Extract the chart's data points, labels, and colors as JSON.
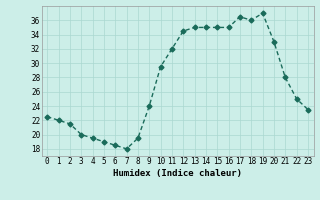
{
  "x": [
    0,
    1,
    2,
    3,
    4,
    5,
    6,
    7,
    8,
    9,
    10,
    11,
    12,
    13,
    14,
    15,
    16,
    17,
    18,
    19,
    20,
    21,
    22,
    23
  ],
  "y": [
    22.5,
    22.0,
    21.5,
    20.0,
    19.5,
    19.0,
    18.5,
    18.0,
    19.5,
    24.0,
    29.5,
    32.0,
    34.5,
    35.0,
    35.0,
    35.0,
    35.0,
    36.5,
    36.0,
    37.0,
    33.0,
    28.0,
    25.0,
    23.5
  ],
  "line_color": "#1a6b5a",
  "marker": "D",
  "marker_size": 2.5,
  "linewidth": 1.0,
  "xlabel": "Humidex (Indice chaleur)",
  "xlim": [
    -0.5,
    23.5
  ],
  "ylim": [
    17,
    38
  ],
  "yticks": [
    18,
    20,
    22,
    24,
    26,
    28,
    30,
    32,
    34,
    36
  ],
  "xtick_labels": [
    "0",
    "1",
    "2",
    "3",
    "4",
    "5",
    "6",
    "7",
    "8",
    "9",
    "10",
    "11",
    "12",
    "13",
    "14",
    "15",
    "16",
    "17",
    "18",
    "19",
    "20",
    "21",
    "22",
    "23"
  ],
  "bg_color": "#cceee8",
  "grid_color": "#aad8d0",
  "tick_fontsize": 5.5,
  "xlabel_fontsize": 6.5
}
